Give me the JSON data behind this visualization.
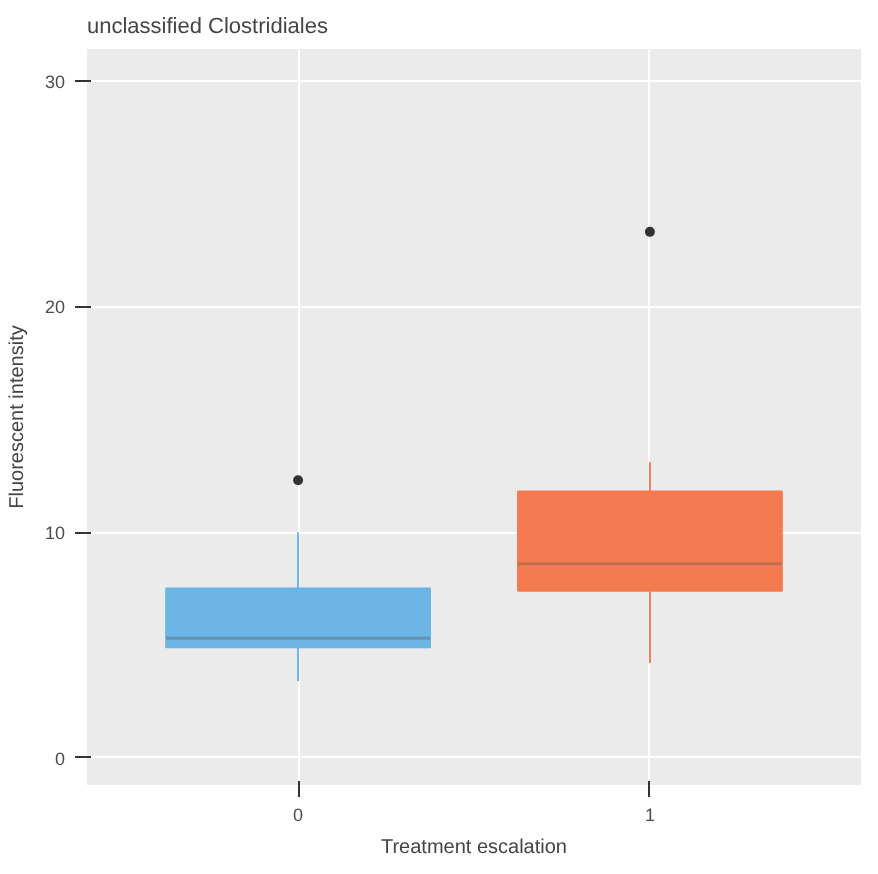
{
  "chart_data": {
    "type": "box",
    "title": "unclassified Clostridiales",
    "xlabel": "Treatment escalation",
    "ylabel": "Fluorescent intensity",
    "categories": [
      "0",
      "1"
    ],
    "boxes": [
      {
        "low": 3.4,
        "q1": 4.9,
        "median": 5.3,
        "q3": 7.5,
        "high": 10.0,
        "outliers": [
          12.3
        ]
      },
      {
        "low": 4.2,
        "q1": 7.4,
        "median": 8.6,
        "q3": 11.8,
        "high": 13.1,
        "outliers": [
          23.3
        ]
      }
    ],
    "colors": [
      "#6cb4e4",
      "#f47a4f"
    ],
    "ylim": [
      -1.2,
      31.4
    ],
    "yticks": [
      0,
      10,
      20,
      30
    ],
    "grid": true
  }
}
